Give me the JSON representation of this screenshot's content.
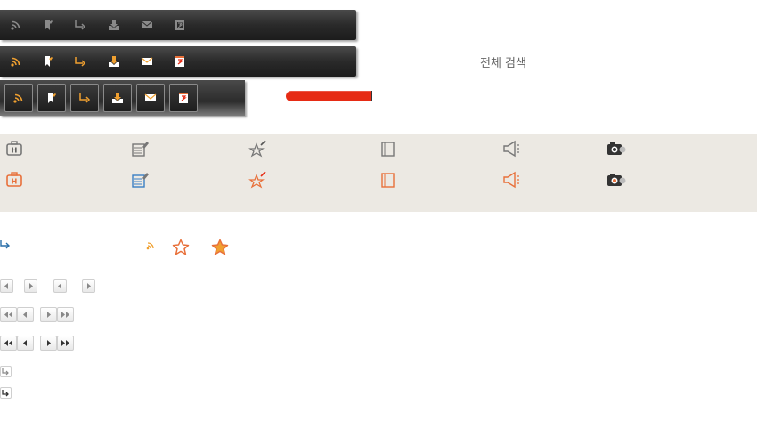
{
  "search": {
    "label": "전체 검색"
  },
  "toolbar_icons": [
    "rss-icon",
    "bookmark-icon",
    "reply-arrow-icon",
    "download-icon",
    "mail-icon",
    "calendar-icon"
  ],
  "category_icons": [
    "briefcase-icon",
    "edit-document-icon",
    "star-pin-icon",
    "notes-icon",
    "megaphone-icon",
    "camera-icon"
  ],
  "colors": {
    "toolbar_bg": "#2a2a2a",
    "icon_gray": "#8a8a8a",
    "icon_orange": "#f0a030",
    "icon_coral": "#e8703a",
    "icon_blue": "#3a7fc4",
    "red_bar": "#e62b14",
    "beige_bg": "#ece9e3",
    "link_blue": "#2a6fa8"
  },
  "progress": {
    "value": 1.0
  }
}
